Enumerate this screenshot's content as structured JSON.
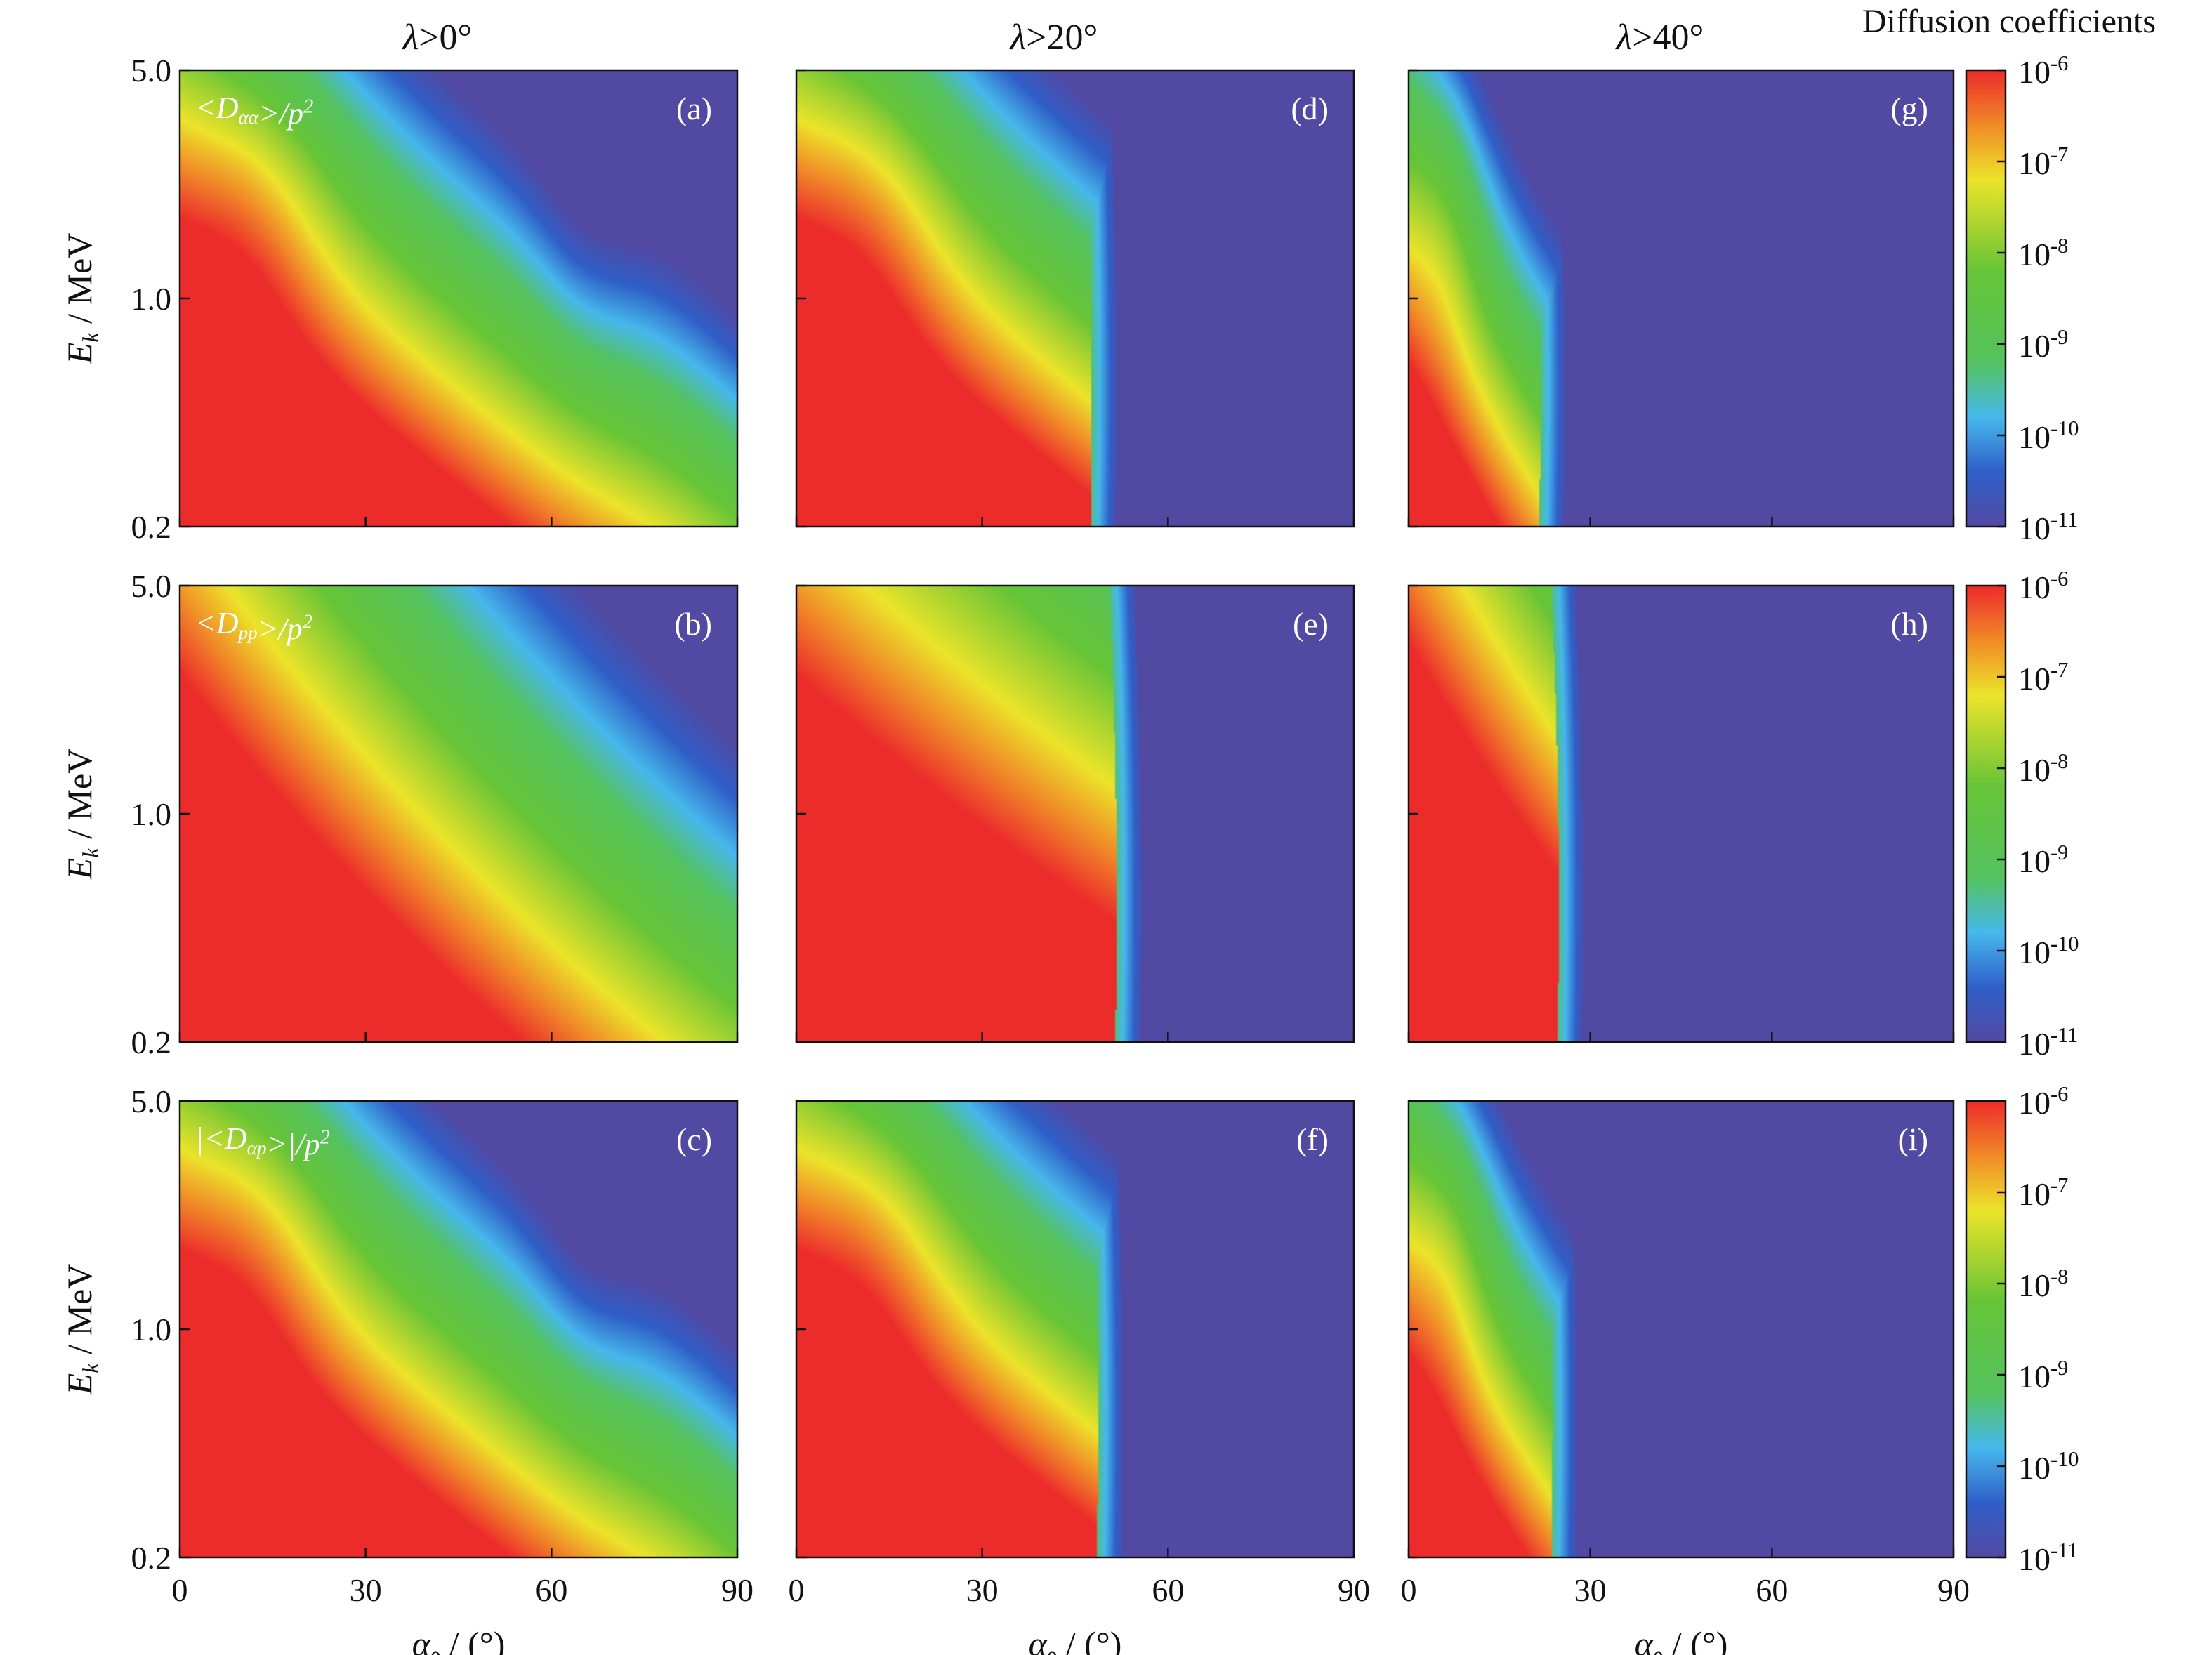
{
  "figure": {
    "colorbar_title": "Diffusion coefficients"
  },
  "chart_data": {
    "type": "heatmap",
    "layout": "3x3 grid",
    "columns": [
      {
        "title": "λ>0°",
        "latitude_min_deg": 0
      },
      {
        "title": "λ>20°",
        "latitude_min_deg": 20
      },
      {
        "title": "λ>40°",
        "latitude_min_deg": 40
      }
    ],
    "rows": [
      {
        "quantity": "<Dαα>/p2"
      },
      {
        "quantity": "<Dpp>/p2"
      },
      {
        "quantity": "|<Dαp>|/p2"
      }
    ],
    "panels": [
      {
        "id": "(a)",
        "row": 0,
        "col": 0,
        "label": "<Dαα>/p2",
        "access_edge_deg": 90,
        "shape": "alpha",
        "red_core": 1.0
      },
      {
        "id": "(d)",
        "row": 0,
        "col": 1,
        "access_edge_deg": 53,
        "shape": "alpha",
        "red_core": 1.0
      },
      {
        "id": "(g)",
        "row": 0,
        "col": 2,
        "access_edge_deg": 27,
        "shape": "alpha",
        "red_core": 0.45
      },
      {
        "id": "(b)",
        "row": 1,
        "col": 0,
        "label": "<Dpp>/p2",
        "access_edge_deg": 90,
        "shape": "pp",
        "red_core": 1.0
      },
      {
        "id": "(e)",
        "row": 1,
        "col": 1,
        "access_edge_deg": 57,
        "shape": "pp",
        "red_core": 1.0
      },
      {
        "id": "(h)",
        "row": 1,
        "col": 2,
        "access_edge_deg": 30,
        "shape": "pp",
        "red_core": 1.0
      },
      {
        "id": "(c)",
        "row": 2,
        "col": 0,
        "label": "|<Dαp>|/p2",
        "access_edge_deg": 90,
        "shape": "ap",
        "red_core": 1.0
      },
      {
        "id": "(f)",
        "row": 2,
        "col": 1,
        "access_edge_deg": 54,
        "shape": "ap",
        "red_core": 1.0
      },
      {
        "id": "(i)",
        "row": 2,
        "col": 2,
        "access_edge_deg": 29,
        "shape": "ap",
        "red_core": 0.6
      }
    ],
    "x": {
      "label": "αe / (°)",
      "range": [
        0,
        90
      ],
      "ticks": [
        0,
        30,
        60,
        90
      ]
    },
    "y": {
      "label": "Ek / MeV",
      "scale": "log",
      "range": [
        0.2,
        5.0
      ],
      "ticks": [
        0.2,
        1.0,
        5.0
      ],
      "tick_labels": [
        "0.2",
        "1.0",
        "5.0"
      ]
    },
    "colorbar": {
      "scale": "log",
      "range": [
        1e-11,
        1e-06
      ],
      "ticks": [
        "10-6",
        "10-7",
        "10-8",
        "10-9",
        "10-10",
        "10-11"
      ],
      "colormap": [
        {
          "v": 0.0,
          "color": "#5249a3"
        },
        {
          "v": 0.12,
          "color": "#2f5fc8"
        },
        {
          "v": 0.24,
          "color": "#47b8ec"
        },
        {
          "v": 0.36,
          "color": "#54c25e"
        },
        {
          "v": 0.56,
          "color": "#66c437"
        },
        {
          "v": 0.76,
          "color": "#ece42a"
        },
        {
          "v": 0.88,
          "color": "#f08a28"
        },
        {
          "v": 1.0,
          "color": "#ec2b2b"
        }
      ]
    },
    "grid": false,
    "legend": "colorbar right"
  }
}
